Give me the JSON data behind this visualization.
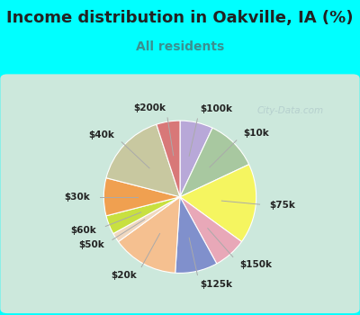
{
  "title": "Income distribution in Oakville, IA (%)",
  "subtitle": "All residents",
  "background_outer": "#00FFFF",
  "background_inner_gradient_top": "#e8f5f0",
  "background_inner_gradient_bottom": "#d0eee0",
  "labels": [
    "$100k",
    "$10k",
    "$75k",
    "$150k",
    "$125k",
    "$20k",
    "$50k",
    "$60k",
    "$30k",
    "$40k",
    "$200k"
  ],
  "values": [
    7,
    11,
    17,
    7,
    9,
    14,
    2,
    4,
    8,
    16,
    5
  ],
  "colors": [
    "#b8a8d8",
    "#a8c8a0",
    "#f5f560",
    "#e8a8b8",
    "#8090cc",
    "#f5c090",
    "#f0d8c0",
    "#c8e040",
    "#f0a050",
    "#c8c8a0",
    "#d87878"
  ],
  "start_angle": 90,
  "wedge_edge_color": "white",
  "wedge_edge_width": 0.8,
  "label_fontsize": 7.5,
  "label_color": "#222222",
  "label_fontweight": "bold",
  "title_fontsize": 13,
  "title_color": "#222222",
  "subtitle_fontsize": 10,
  "subtitle_color": "#3a9090",
  "watermark": "City-Data.com",
  "watermark_color": "#a0b8c0",
  "watermark_alpha": 0.5
}
